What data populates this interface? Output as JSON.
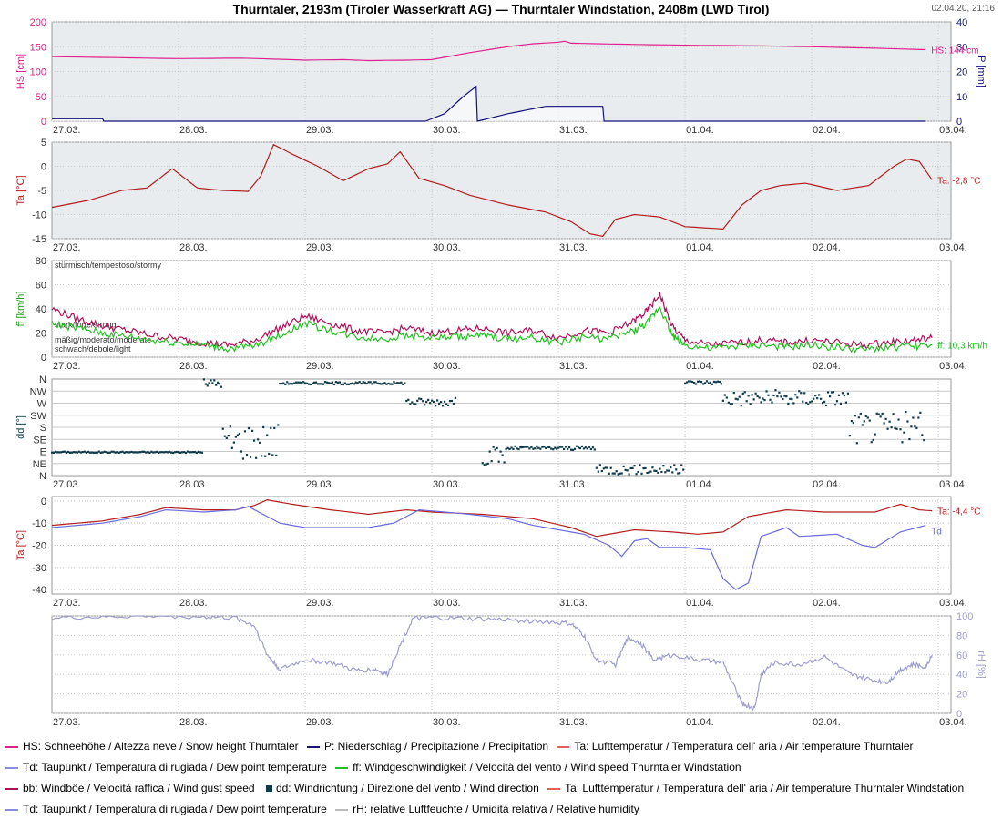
{
  "header": {
    "title": "Thurntaler, 2193m (Tiroler Wasserkraft AG) — Thurntaler Windstation, 2408m (LWD Tirol)",
    "timestamp": "02.04.20, 21:16"
  },
  "colors": {
    "hs": "#e0208e",
    "precip": "#13137a",
    "ta": "#b41c1c",
    "td": "#6b6bdc",
    "ff": "#22c022",
    "bb": "#b0105a",
    "dd": "#0f3b4a",
    "rh": "#9e9ecf",
    "plot_bg_shaded": "#e8ecef",
    "grid": "#c8c8c8"
  },
  "x_axis": {
    "days": [
      "27.03.",
      "28.03.",
      "29.03.",
      "30.03.",
      "31.03.",
      "01.04.",
      "02.04.",
      "03.04."
    ]
  },
  "legend": [
    [
      {
        "color": "#e0208e",
        "shape": "line",
        "label": "HS: Schneehöhe / Altezza neve / Snow height  Thurntaler"
      },
      {
        "color": "#13137a",
        "shape": "line",
        "label": "P: Niederschlag / Precipitazione / Precipitation"
      },
      {
        "color": "#e06060",
        "shape": "line",
        "label": "Ta: Lufttemperatur / Temperatura dell' aria / Air temperature  Thurntaler"
      }
    ],
    [
      {
        "color": "#8a8ae0",
        "shape": "line",
        "label": "Td: Taupunkt / Temperatura di rugiada / Dew point temperature"
      },
      {
        "color": "#22c022",
        "shape": "line",
        "label": "ff: Windgeschwindigkeit / Velocità del vento / Wind speed  Thurntaler Windstation"
      }
    ],
    [
      {
        "color": "#b0105a",
        "shape": "line",
        "label": "bb: Windböe / Velocità raffica / Wind gust speed"
      },
      {
        "color": "#0f3b4a",
        "shape": "square",
        "label": "dd: Windrichtung / Direzione del vento / Wind direction"
      },
      {
        "color": "#e06060",
        "shape": "line",
        "label": "Ta: Lufttemperatur / Temperatura dell' aria / Air temperature  Thurntaler Windstation"
      }
    ],
    [
      {
        "color": "#8a8ae0",
        "shape": "line",
        "label": "Td: Taupunkt / Temperatura di rugiada / Dew point temperature"
      },
      {
        "color": "#bbbbbb",
        "shape": "line",
        "label": "rH: relative Luftfeuchte / Umidità relativa / Relative humidity"
      }
    ]
  ],
  "chart_data": [
    {
      "type": "line",
      "panel": "snow-precip",
      "ylabel": "HS [cm]",
      "ylim": [
        0,
        200
      ],
      "yticks": [
        0,
        50,
        100,
        150,
        200
      ],
      "ylabel_right": "P [mm]",
      "ylim_right": [
        0,
        40
      ],
      "yticks_right": [
        0,
        10,
        20,
        30,
        40
      ],
      "xlim": [
        0,
        7.1
      ],
      "end_label": "HS: 144 cm",
      "series": [
        {
          "name": "HS",
          "axis": "left",
          "color": "#e0208e",
          "x": [
            0,
            0.5,
            1.0,
            1.5,
            2.0,
            2.3,
            2.5,
            2.8,
            3.0,
            3.3,
            3.6,
            3.8,
            4.0,
            4.05,
            4.1,
            4.5,
            5.0,
            5.5,
            6.0,
            6.5,
            6.9
          ],
          "y": [
            130,
            128,
            126,
            127,
            123,
            124,
            122,
            123,
            124,
            138,
            150,
            156,
            159,
            161,
            157,
            155,
            153,
            152,
            150,
            147,
            144
          ]
        },
        {
          "name": "P",
          "axis": "right",
          "color": "#13137a",
          "x": [
            0,
            0.4,
            0.41,
            2.95,
            3.1,
            3.25,
            3.35,
            3.36,
            3.6,
            3.8,
            3.9,
            4.35,
            4.36,
            6.9
          ],
          "y": [
            1,
            1,
            0,
            0,
            3,
            10,
            14,
            0,
            3,
            5,
            6,
            6,
            0,
            0
          ]
        }
      ]
    },
    {
      "type": "line",
      "panel": "temperature-thurntaler",
      "ylabel": "Ta [°C]",
      "ylim": [
        -15,
        5
      ],
      "yticks": [
        -15,
        -10,
        -5,
        0,
        5
      ],
      "xlim": [
        0,
        7.1
      ],
      "end_label": "Ta: -2,8 °C",
      "series": [
        {
          "name": "Ta",
          "color": "#b41c1c",
          "x": [
            0,
            0.3,
            0.55,
            0.75,
            0.95,
            1.15,
            1.35,
            1.55,
            1.65,
            1.75,
            1.9,
            2.1,
            2.3,
            2.5,
            2.65,
            2.75,
            2.9,
            3.1,
            3.3,
            3.6,
            3.9,
            4.1,
            4.25,
            4.35,
            4.45,
            4.6,
            4.8,
            5.0,
            5.3,
            5.45,
            5.6,
            5.75,
            5.95,
            6.2,
            6.45,
            6.65,
            6.75,
            6.85,
            6.95
          ],
          "y": [
            -8.5,
            -7,
            -5,
            -4.5,
            -0.5,
            -4.5,
            -5,
            -5.2,
            -2,
            4.5,
            2.5,
            0,
            -3,
            -0.5,
            0.5,
            3,
            -2.5,
            -4,
            -6,
            -8,
            -9.5,
            -11.5,
            -14,
            -14.5,
            -11,
            -10,
            -10.5,
            -12.5,
            -13,
            -8,
            -5,
            -4,
            -3.5,
            -5,
            -4,
            0,
            1.5,
            1,
            -2.8
          ]
        }
      ]
    },
    {
      "type": "line",
      "panel": "wind-speed",
      "ylabel": "ff [km/h]",
      "ylim": [
        0,
        80
      ],
      "yticks": [
        0,
        20,
        40,
        60,
        80
      ],
      "xlim": [
        0,
        7.1
      ],
      "band_labels": [
        "stürmisch/tempestoso/stormy",
        "stark/forte/strong",
        "mäßig/moderato/moderate",
        "schwach/debole/light"
      ],
      "end_label": "ff: 10,3 km/h",
      "series": [
        {
          "name": "bb",
          "color": "#b0105a",
          "x": [
            0,
            0.2,
            0.4,
            0.6,
            0.8,
            1.0,
            1.2,
            1.4,
            1.6,
            1.8,
            2.0,
            2.2,
            2.4,
            2.6,
            2.8,
            3.0,
            3.2,
            3.4,
            3.6,
            3.8,
            4.0,
            4.2,
            4.4,
            4.6,
            4.7,
            4.8,
            4.9,
            5.0,
            5.2,
            5.4,
            5.6,
            5.8,
            6.0,
            6.2,
            6.4,
            6.6,
            6.8,
            6.95
          ],
          "y": [
            40,
            32,
            26,
            22,
            18,
            15,
            12,
            10,
            14,
            24,
            34,
            28,
            22,
            20,
            24,
            20,
            22,
            24,
            20,
            22,
            16,
            22,
            20,
            30,
            38,
            52,
            25,
            14,
            10,
            12,
            14,
            12,
            14,
            12,
            10,
            12,
            14,
            16
          ]
        },
        {
          "name": "ff",
          "color": "#22c022",
          "x": [
            0,
            0.2,
            0.4,
            0.6,
            0.8,
            1.0,
            1.2,
            1.4,
            1.6,
            1.8,
            2.0,
            2.2,
            2.4,
            2.6,
            2.8,
            3.0,
            3.2,
            3.4,
            3.6,
            3.8,
            4.0,
            4.2,
            4.4,
            4.6,
            4.7,
            4.8,
            4.9,
            5.0,
            5.2,
            5.4,
            5.6,
            5.8,
            6.0,
            6.2,
            6.4,
            6.6,
            6.8,
            6.95
          ],
          "y": [
            28,
            24,
            20,
            17,
            14,
            12,
            10,
            7,
            9,
            18,
            28,
            22,
            17,
            15,
            18,
            16,
            17,
            18,
            15,
            16,
            12,
            17,
            15,
            22,
            28,
            42,
            18,
            10,
            7,
            9,
            10,
            8,
            10,
            8,
            6,
            8,
            9,
            10.3
          ]
        }
      ]
    },
    {
      "type": "scatter",
      "panel": "wind-direction",
      "ylabel": "dd [°]",
      "ylim": [
        0,
        360
      ],
      "ytick_labels": [
        "N",
        "NE",
        "E",
        "SE",
        "S",
        "SW",
        "W",
        "NW",
        "N"
      ],
      "xlim": [
        0,
        7.1
      ],
      "series": [
        {
          "name": "dd",
          "color": "#0f3b4a",
          "segments": [
            {
              "x": [
                0,
                1.2
              ],
              "y": [
                85,
                90
              ]
            },
            {
              "x": [
                1.2,
                1.35
              ],
              "y": [
                330,
                360
              ]
            },
            {
              "x": [
                1.35,
                1.8
              ],
              "y": [
                60,
                200
              ]
            },
            {
              "x": [
                1.8,
                2.8
              ],
              "y": [
                340,
                350
              ]
            },
            {
              "x": [
                2.8,
                3.2
              ],
              "y": [
                260,
                290
              ]
            },
            {
              "x": [
                3.4,
                3.6
              ],
              "y": [
                40,
                110
              ]
            },
            {
              "x": [
                3.6,
                4.3
              ],
              "y": [
                95,
                110
              ]
            },
            {
              "x": [
                4.3,
                5.0
              ],
              "y": [
                5,
                40
              ]
            },
            {
              "x": [
                5.0,
                5.3
              ],
              "y": [
                340,
                355
              ]
            },
            {
              "x": [
                5.3,
                6.3
              ],
              "y": [
                260,
                320
              ]
            },
            {
              "x": [
                6.3,
                6.9
              ],
              "y": [
                120,
                240
              ]
            }
          ]
        }
      ]
    },
    {
      "type": "line",
      "panel": "temperature-windstation",
      "ylabel": "Ta [°C]",
      "ylim": [
        -42,
        2
      ],
      "yticks": [
        -40,
        -30,
        -20,
        -10,
        0
      ],
      "xlim": [
        0,
        7.1
      ],
      "end_labels": [
        "Ta: -4,4 °C",
        "Td"
      ],
      "series": [
        {
          "name": "Ta",
          "color": "#b41c1c",
          "x": [
            0,
            0.4,
            0.7,
            0.9,
            1.2,
            1.45,
            1.6,
            1.7,
            1.9,
            2.2,
            2.5,
            2.8,
            3.0,
            3.4,
            3.8,
            4.1,
            4.3,
            4.6,
            4.9,
            5.1,
            5.3,
            5.5,
            5.8,
            6.1,
            6.5,
            6.7,
            6.85,
            6.95
          ],
          "y": [
            -11,
            -9,
            -6,
            -3,
            -4,
            -4,
            -2,
            0.5,
            -1.5,
            -4,
            -6,
            -4,
            -5,
            -6,
            -8,
            -12,
            -16,
            -13,
            -14,
            -15,
            -14,
            -7,
            -4,
            -5,
            -5,
            -1.5,
            -4,
            -4.4
          ]
        },
        {
          "name": "Td",
          "color": "#6b6bdc",
          "x": [
            0,
            0.4,
            0.7,
            0.9,
            1.2,
            1.45,
            1.55,
            1.7,
            1.8,
            2.0,
            2.3,
            2.5,
            2.7,
            2.9,
            3.1,
            3.3,
            3.6,
            3.8,
            4.0,
            4.2,
            4.4,
            4.5,
            4.6,
            4.7,
            4.8,
            5.0,
            5.2,
            5.3,
            5.4,
            5.5,
            5.6,
            5.8,
            5.9,
            6.2,
            6.4,
            6.5,
            6.7,
            6.9
          ],
          "y": [
            -12,
            -10,
            -7,
            -4,
            -5,
            -4,
            -2.5,
            -7,
            -10,
            -12,
            -12,
            -12,
            -10,
            -4,
            -5,
            -6,
            -8,
            -11,
            -13,
            -15,
            -20,
            -25,
            -18,
            -17,
            -21,
            -21,
            -22,
            -35,
            -40,
            -37,
            -16,
            -12,
            -16,
            -15,
            -20,
            -21,
            -14,
            -11
          ]
        }
      ]
    },
    {
      "type": "line",
      "panel": "relative-humidity",
      "ylabel_right": "rH [%]",
      "ylim": [
        0,
        100
      ],
      "yticks": [
        0,
        20,
        40,
        60,
        80,
        100
      ],
      "xlim": [
        0,
        7.1
      ],
      "series": [
        {
          "name": "rH",
          "color": "#9e9ecf",
          "x": [
            0,
            0.4,
            0.8,
            1.2,
            1.45,
            1.6,
            1.7,
            1.8,
            2.0,
            2.2,
            2.4,
            2.55,
            2.65,
            2.75,
            2.85,
            3.0,
            3.3,
            3.6,
            3.9,
            4.1,
            4.2,
            4.3,
            4.45,
            4.55,
            4.65,
            4.75,
            4.9,
            5.1,
            5.3,
            5.45,
            5.55,
            5.6,
            5.7,
            5.9,
            6.1,
            6.3,
            6.45,
            6.6,
            6.7,
            6.8,
            6.9,
            6.95
          ],
          "y": [
            98,
            99,
            100,
            99,
            98,
            90,
            60,
            45,
            55,
            52,
            44,
            45,
            40,
            70,
            97,
            98,
            97,
            96,
            94,
            92,
            80,
            55,
            50,
            78,
            72,
            55,
            60,
            55,
            52,
            10,
            5,
            40,
            52,
            50,
            58,
            40,
            35,
            32,
            45,
            50,
            48,
            60
          ]
        }
      ]
    }
  ]
}
